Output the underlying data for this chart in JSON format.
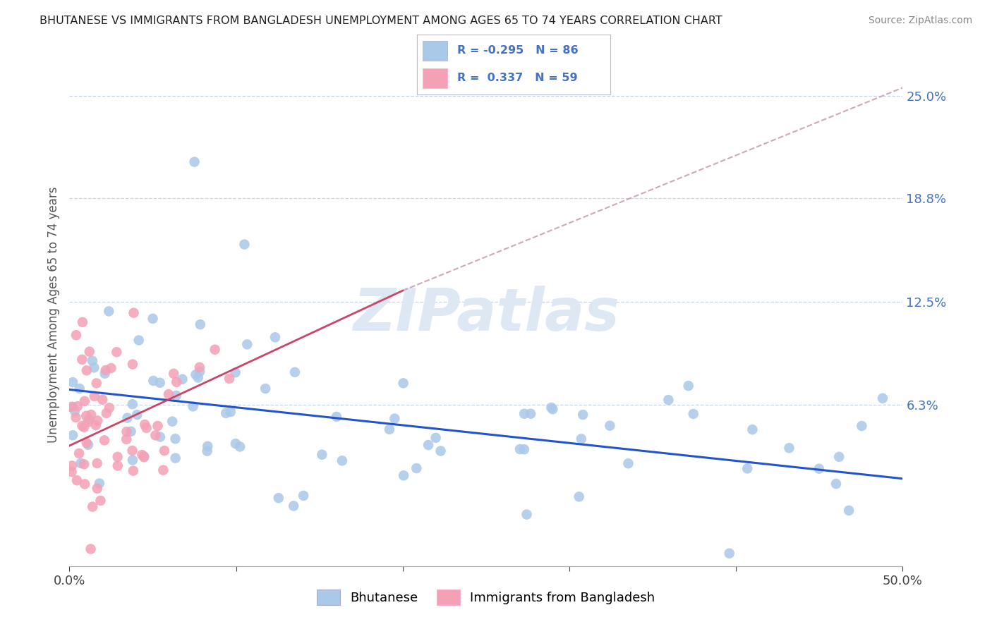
{
  "title": "BHUTANESE VS IMMIGRANTS FROM BANGLADESH UNEMPLOYMENT AMONG AGES 65 TO 74 YEARS CORRELATION CHART",
  "source": "Source: ZipAtlas.com",
  "ylabel": "Unemployment Among Ages 65 to 74 years",
  "xlim": [
    0,
    50
  ],
  "ylim": [
    -3.5,
    27
  ],
  "ytick_labels": [
    "6.3%",
    "12.5%",
    "18.8%",
    "25.0%"
  ],
  "ytick_values": [
    6.3,
    12.5,
    18.8,
    25.0
  ],
  "xtick_labels": [
    "0.0%",
    "50.0%"
  ],
  "xtick_values": [
    0,
    50
  ],
  "series1_name": "Bhutanese",
  "series1_color": "#aac8e8",
  "series1_R": -0.295,
  "series1_N": 86,
  "series2_name": "Immigrants from Bangladesh",
  "series2_color": "#f4a0b5",
  "series2_R": 0.337,
  "series2_N": 59,
  "legend_label_color": "#4472c4",
  "trend1_color": "#2255cc",
  "trend2_color": "#cc4466",
  "trend_dash_color": "#ccaabb",
  "grid_color": "#c8d4e8",
  "background_color": "#ffffff",
  "watermark_color": "#dde8f4",
  "figsize": [
    14.06,
    8.92
  ],
  "dpi": 100,
  "blue_trend_y0": 7.2,
  "blue_trend_y50": 1.8,
  "pink_trend_y0": 3.8,
  "pink_trend_y20": 13.2,
  "pink_dash_y50": 25.5
}
